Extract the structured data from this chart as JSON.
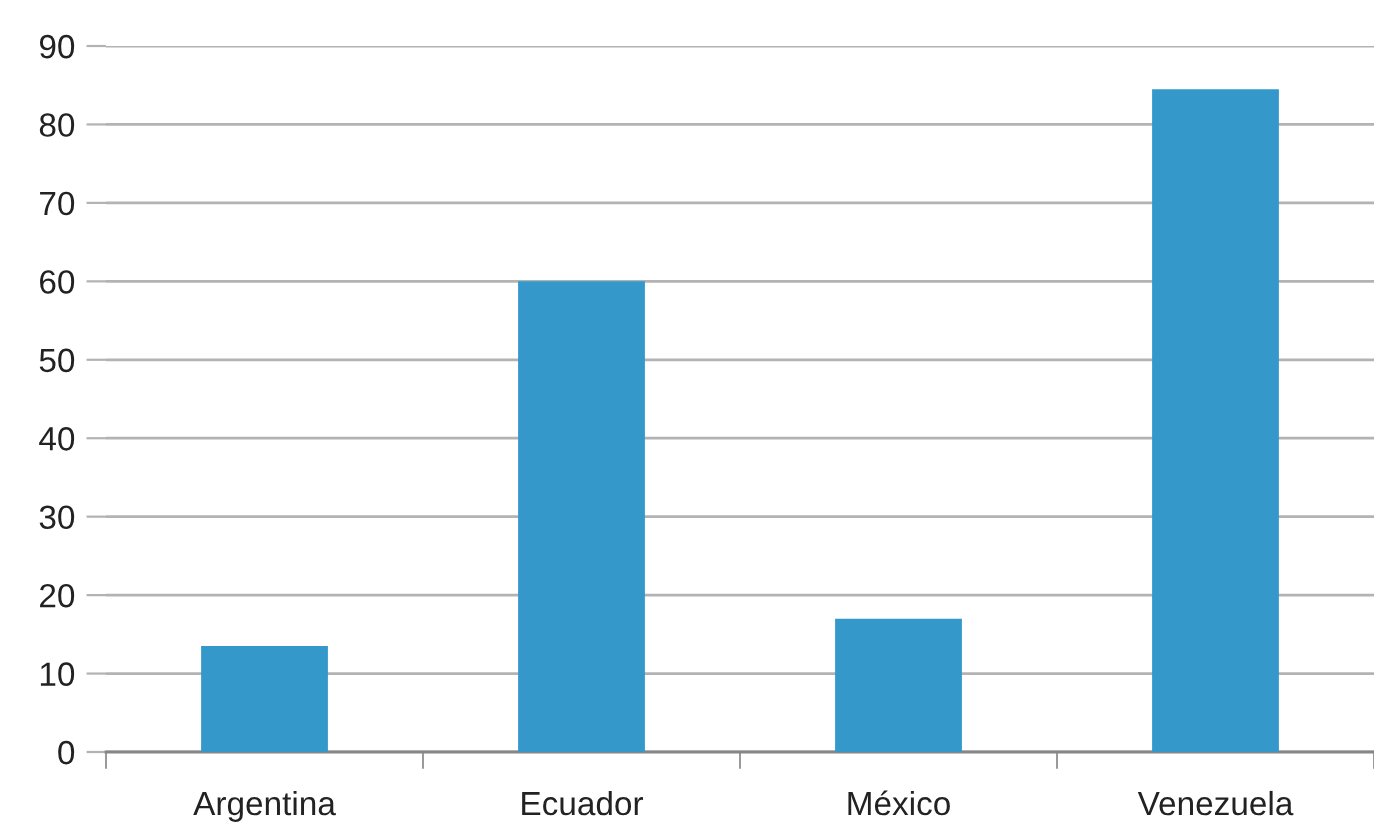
{
  "chart_data": {
    "type": "bar",
    "categories": [
      "Argentina",
      "Ecuador",
      "México",
      "Venezuela"
    ],
    "values": [
      13.5,
      60,
      17,
      84.5
    ],
    "color": "#3498cb",
    "ylim": [
      0,
      90
    ],
    "yticks": [
      0,
      10,
      20,
      30,
      40,
      50,
      60,
      70,
      80,
      90
    ],
    "grid": "y",
    "legend": false
  }
}
